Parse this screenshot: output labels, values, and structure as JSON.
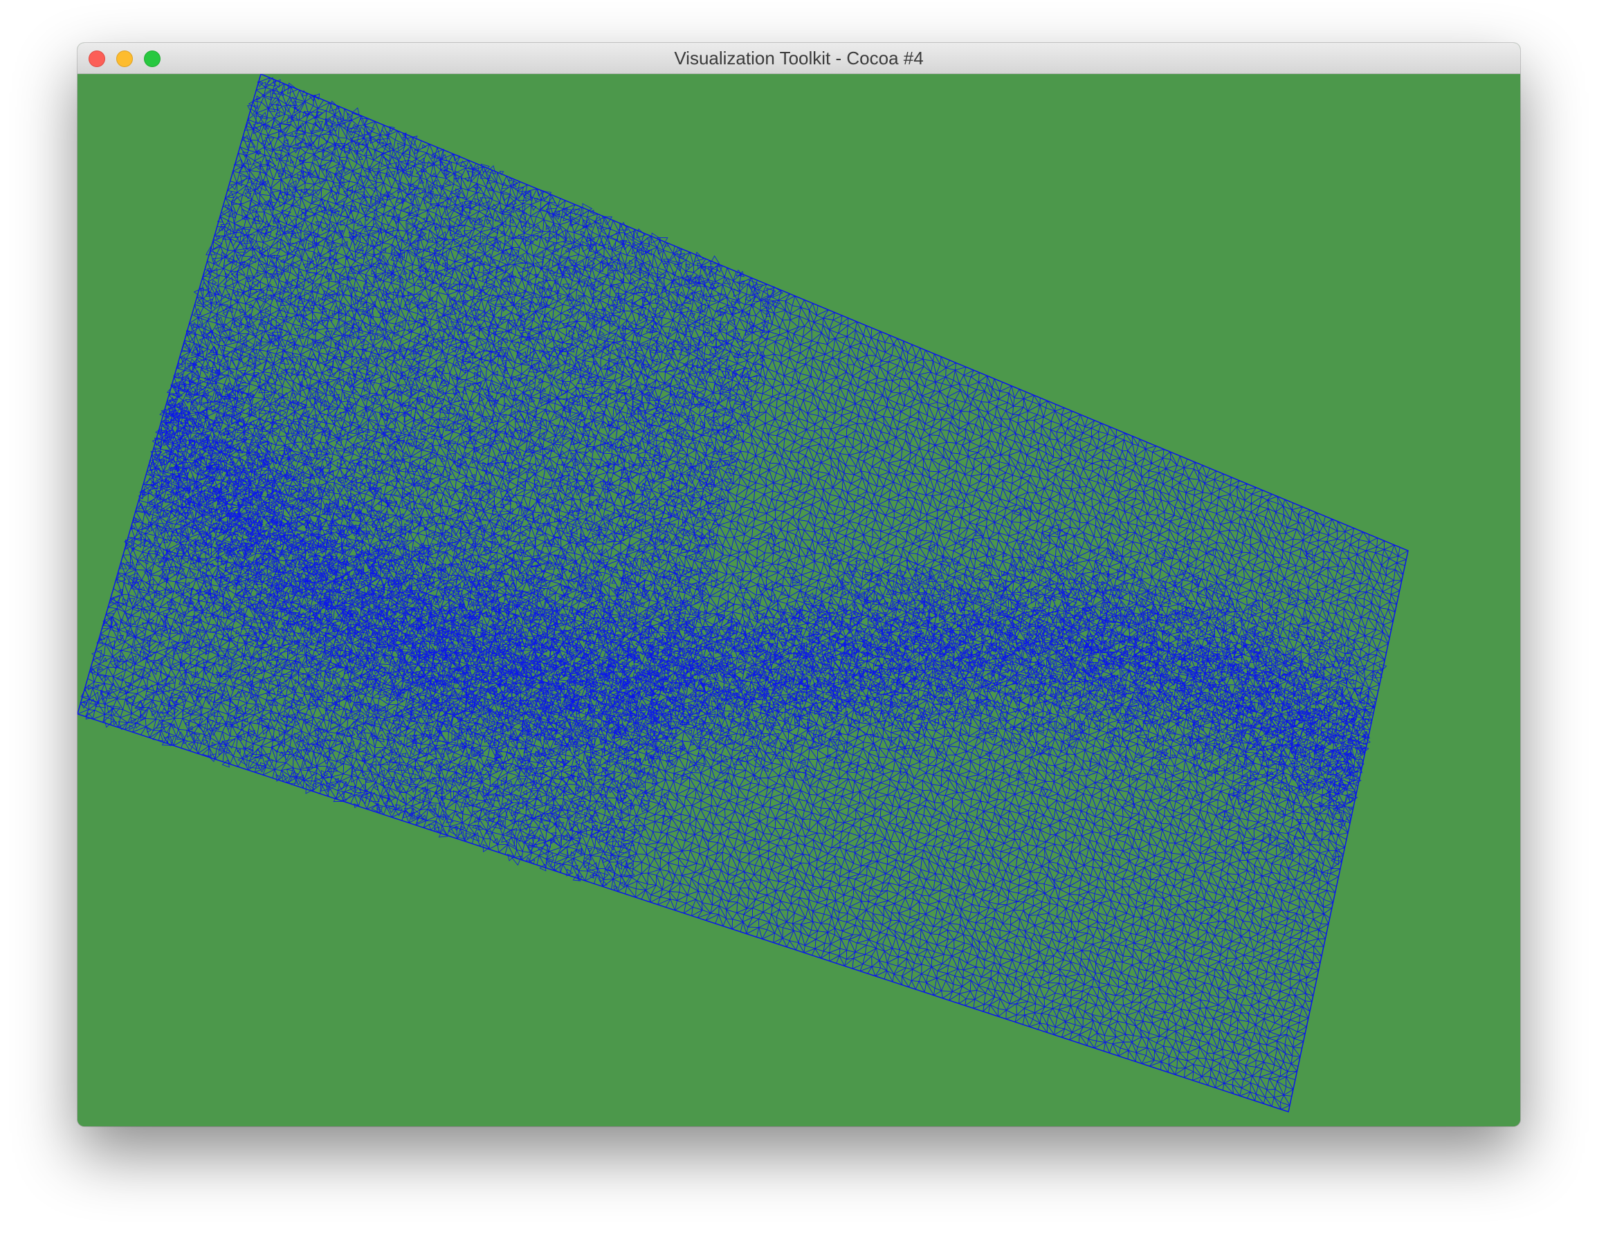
{
  "window": {
    "title": "Visualization Toolkit - Cocoa #4"
  },
  "titlebar": {
    "buttons": [
      "close",
      "minimize",
      "zoom"
    ]
  },
  "render": {
    "background_color": "#4c984b",
    "mesh_color": "#0a14ee",
    "mesh_style": "wireframe triangulated terrain mesh"
  }
}
